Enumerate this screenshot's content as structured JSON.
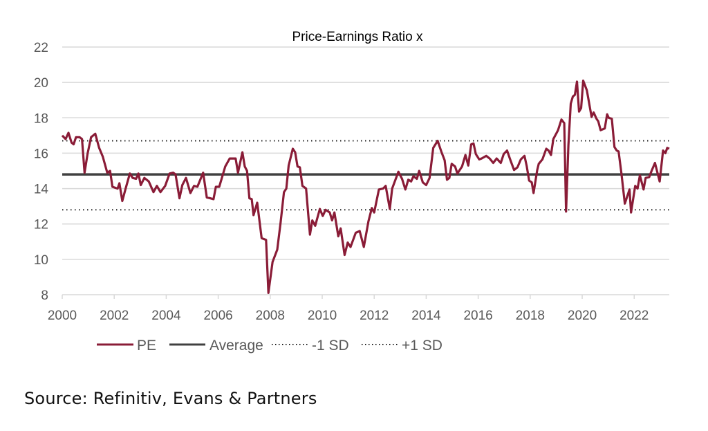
{
  "chart_data": {
    "type": "line",
    "title": "Price-Earnings Ratio x",
    "xlabel": "",
    "ylabel": "",
    "xlim": [
      2000,
      2023.35
    ],
    "ylim": [
      8,
      22
    ],
    "grid": true,
    "legend_position": "bottom",
    "y_ticks": [
      "8",
      "10",
      "12",
      "14",
      "16",
      "18",
      "20",
      "22"
    ],
    "y_tick_values": [
      8,
      10,
      12,
      14,
      16,
      18,
      20,
      22
    ],
    "x_ticks": [
      "2000",
      "2002",
      "2004",
      "2006",
      "2008",
      "2010",
      "2012",
      "2014",
      "2016",
      "2018",
      "2020",
      "2022"
    ],
    "x_tick_values": [
      2000,
      2002,
      2004,
      2006,
      2008,
      2010,
      2012,
      2014,
      2016,
      2018,
      2020,
      2022
    ],
    "colors": {
      "PE": "#8a1c37",
      "Average": "#404040",
      "SD": "#222222",
      "grid": "#d9d9d9"
    },
    "series": [
      {
        "name": "PE",
        "style": "solid",
        "points": [
          [
            2000.0,
            17.0
          ],
          [
            2000.13,
            16.8
          ],
          [
            2000.24,
            17.15
          ],
          [
            2000.36,
            16.6
          ],
          [
            2000.44,
            16.5
          ],
          [
            2000.53,
            16.9
          ],
          [
            2000.67,
            16.9
          ],
          [
            2000.76,
            16.8
          ],
          [
            2000.86,
            14.9
          ],
          [
            2000.98,
            16.0
          ],
          [
            2001.11,
            16.9
          ],
          [
            2001.27,
            17.1
          ],
          [
            2001.42,
            16.3
          ],
          [
            2001.56,
            15.8
          ],
          [
            2001.73,
            14.9
          ],
          [
            2001.84,
            15.0
          ],
          [
            2001.93,
            14.1
          ],
          [
            2002.13,
            14.0
          ],
          [
            2002.2,
            14.3
          ],
          [
            2002.31,
            13.3
          ],
          [
            2002.44,
            14.0
          ],
          [
            2002.6,
            14.85
          ],
          [
            2002.71,
            14.6
          ],
          [
            2002.84,
            14.55
          ],
          [
            2002.93,
            14.85
          ],
          [
            2003.02,
            14.2
          ],
          [
            2003.16,
            14.6
          ],
          [
            2003.33,
            14.4
          ],
          [
            2003.51,
            13.8
          ],
          [
            2003.64,
            14.15
          ],
          [
            2003.78,
            13.8
          ],
          [
            2003.96,
            14.15
          ],
          [
            2004.13,
            14.85
          ],
          [
            2004.27,
            14.9
          ],
          [
            2004.36,
            14.8
          ],
          [
            2004.51,
            13.45
          ],
          [
            2004.62,
            14.2
          ],
          [
            2004.76,
            14.6
          ],
          [
            2004.93,
            13.75
          ],
          [
            2005.07,
            14.15
          ],
          [
            2005.2,
            14.1
          ],
          [
            2005.42,
            14.9
          ],
          [
            2005.56,
            13.5
          ],
          [
            2005.69,
            13.45
          ],
          [
            2005.82,
            13.4
          ],
          [
            2005.91,
            14.1
          ],
          [
            2006.04,
            14.1
          ],
          [
            2006.27,
            15.25
          ],
          [
            2006.44,
            15.7
          ],
          [
            2006.67,
            15.7
          ],
          [
            2006.76,
            14.9
          ],
          [
            2006.93,
            16.05
          ],
          [
            2007.02,
            15.25
          ],
          [
            2007.11,
            15.0
          ],
          [
            2007.2,
            13.45
          ],
          [
            2007.29,
            13.4
          ],
          [
            2007.36,
            12.5
          ],
          [
            2007.5,
            13.2
          ],
          [
            2007.67,
            11.2
          ],
          [
            2007.84,
            11.1
          ],
          [
            2007.93,
            8.1
          ],
          [
            2008.09,
            9.85
          ],
          [
            2008.27,
            10.55
          ],
          [
            2008.4,
            12.1
          ],
          [
            2008.53,
            13.8
          ],
          [
            2008.62,
            14.0
          ],
          [
            2008.71,
            15.3
          ],
          [
            2008.87,
            16.25
          ],
          [
            2008.96,
            16.05
          ],
          [
            2009.05,
            15.25
          ],
          [
            2009.14,
            15.2
          ],
          [
            2009.24,
            14.15
          ],
          [
            2009.38,
            14.0
          ],
          [
            2009.53,
            11.4
          ],
          [
            2009.62,
            12.2
          ],
          [
            2009.73,
            11.9
          ],
          [
            2009.91,
            12.85
          ],
          [
            2010.02,
            12.45
          ],
          [
            2010.13,
            12.8
          ],
          [
            2010.29,
            12.65
          ],
          [
            2010.38,
            12.2
          ],
          [
            2010.47,
            12.65
          ],
          [
            2010.62,
            11.3
          ],
          [
            2010.71,
            11.75
          ],
          [
            2010.86,
            10.25
          ],
          [
            2010.98,
            10.95
          ],
          [
            2011.09,
            10.7
          ],
          [
            2011.29,
            11.5
          ],
          [
            2011.44,
            11.6
          ],
          [
            2011.6,
            10.7
          ],
          [
            2011.78,
            12.15
          ],
          [
            2011.91,
            12.9
          ],
          [
            2012.0,
            12.65
          ],
          [
            2012.18,
            13.95
          ],
          [
            2012.34,
            14.0
          ],
          [
            2012.44,
            14.15
          ],
          [
            2012.6,
            12.85
          ],
          [
            2012.69,
            14.0
          ],
          [
            2012.93,
            14.95
          ],
          [
            2013.07,
            14.55
          ],
          [
            2013.2,
            13.95
          ],
          [
            2013.31,
            14.5
          ],
          [
            2013.42,
            14.4
          ],
          [
            2013.51,
            14.7
          ],
          [
            2013.64,
            14.55
          ],
          [
            2013.73,
            15.0
          ],
          [
            2013.87,
            14.35
          ],
          [
            2014.0,
            14.2
          ],
          [
            2014.13,
            14.6
          ],
          [
            2014.27,
            16.3
          ],
          [
            2014.44,
            16.7
          ],
          [
            2014.58,
            16.1
          ],
          [
            2014.71,
            15.6
          ],
          [
            2014.8,
            14.5
          ],
          [
            2014.89,
            14.6
          ],
          [
            2014.98,
            15.4
          ],
          [
            2015.11,
            15.25
          ],
          [
            2015.2,
            14.85
          ],
          [
            2015.38,
            15.25
          ],
          [
            2015.51,
            15.9
          ],
          [
            2015.62,
            15.3
          ],
          [
            2015.73,
            16.5
          ],
          [
            2015.82,
            16.55
          ],
          [
            2015.91,
            15.95
          ],
          [
            2016.04,
            15.65
          ],
          [
            2016.13,
            15.7
          ],
          [
            2016.31,
            15.85
          ],
          [
            2016.44,
            15.7
          ],
          [
            2016.58,
            15.45
          ],
          [
            2016.71,
            15.7
          ],
          [
            2016.87,
            15.45
          ],
          [
            2016.98,
            15.95
          ],
          [
            2017.11,
            16.15
          ],
          [
            2017.24,
            15.6
          ],
          [
            2017.38,
            15.05
          ],
          [
            2017.51,
            15.2
          ],
          [
            2017.64,
            15.65
          ],
          [
            2017.78,
            15.85
          ],
          [
            2017.87,
            15.25
          ],
          [
            2017.96,
            14.45
          ],
          [
            2018.06,
            14.35
          ],
          [
            2018.13,
            13.75
          ],
          [
            2018.27,
            15.05
          ],
          [
            2018.33,
            15.4
          ],
          [
            2018.47,
            15.65
          ],
          [
            2018.62,
            16.25
          ],
          [
            2018.71,
            16.15
          ],
          [
            2018.8,
            15.9
          ],
          [
            2018.89,
            16.8
          ],
          [
            2019.07,
            17.3
          ],
          [
            2019.2,
            17.9
          ],
          [
            2019.31,
            17.7
          ],
          [
            2019.38,
            12.7
          ],
          [
            2019.47,
            16.45
          ],
          [
            2019.56,
            18.8
          ],
          [
            2019.64,
            19.2
          ],
          [
            2019.72,
            19.3
          ],
          [
            2019.8,
            20.05
          ],
          [
            2019.88,
            18.35
          ],
          [
            2019.96,
            18.55
          ],
          [
            2020.04,
            20.1
          ],
          [
            2020.18,
            19.55
          ],
          [
            2020.36,
            18.05
          ],
          [
            2020.44,
            18.3
          ],
          [
            2020.55,
            17.95
          ],
          [
            2020.62,
            17.8
          ],
          [
            2020.71,
            17.3
          ],
          [
            2020.87,
            17.4
          ],
          [
            2020.96,
            18.2
          ],
          [
            2021.02,
            18.0
          ],
          [
            2021.14,
            17.95
          ],
          [
            2021.24,
            16.35
          ],
          [
            2021.33,
            16.15
          ],
          [
            2021.4,
            16.1
          ],
          [
            2021.51,
            14.85
          ],
          [
            2021.64,
            13.15
          ],
          [
            2021.82,
            13.95
          ],
          [
            2021.88,
            12.65
          ],
          [
            2022.04,
            14.15
          ],
          [
            2022.13,
            14.0
          ],
          [
            2022.22,
            14.75
          ],
          [
            2022.36,
            13.95
          ],
          [
            2022.44,
            14.6
          ],
          [
            2022.58,
            14.65
          ],
          [
            2022.67,
            15.0
          ],
          [
            2022.8,
            15.45
          ],
          [
            2022.98,
            14.4
          ],
          [
            2023.11,
            16.15
          ],
          [
            2023.2,
            16.0
          ],
          [
            2023.27,
            16.3
          ],
          [
            2023.4,
            16.25
          ]
        ]
      },
      {
        "name": "Average",
        "style": "solid",
        "value": 14.8
      },
      {
        "name": "-1 SD",
        "style": "dotted",
        "value": 12.8
      },
      {
        "name": "+1 SD",
        "style": "dotted",
        "value": 16.7
      }
    ]
  },
  "source": "Source: Refinitiv, Evans & Partners"
}
